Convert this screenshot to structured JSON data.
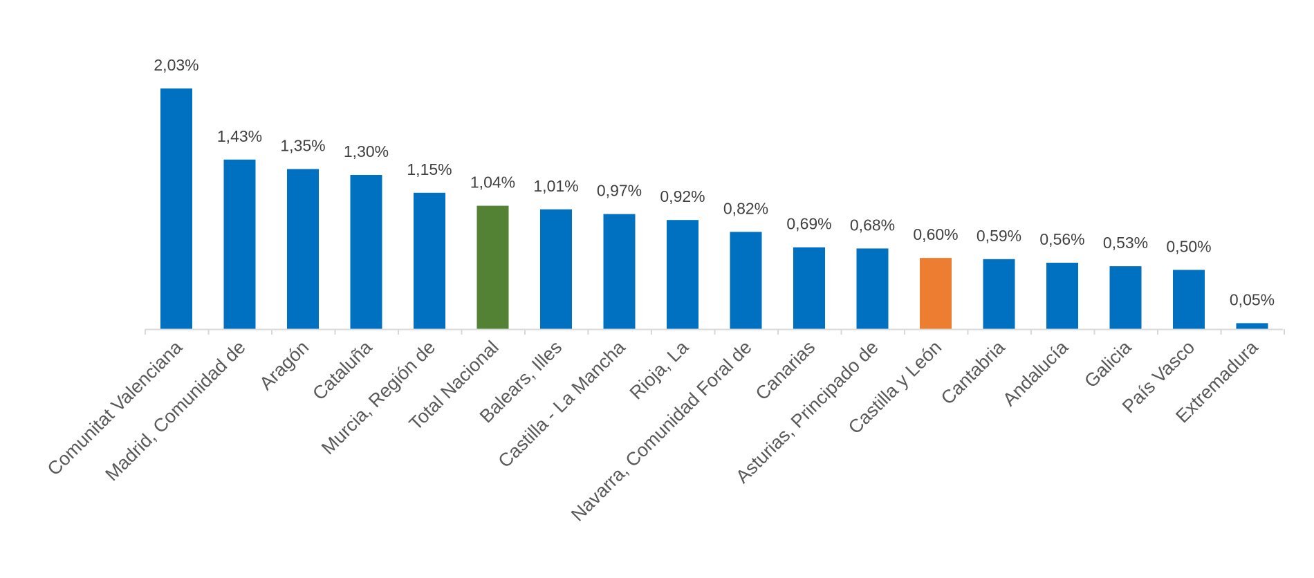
{
  "chart_data": {
    "type": "bar",
    "title": "",
    "xlabel": "",
    "ylabel": "",
    "ylim": [
      0,
      2.1
    ],
    "grid": false,
    "legend": "none",
    "categories": [
      "Comunitat Valenciana",
      "Madrid, Comunidad de",
      "Aragón",
      "Cataluña",
      "Murcia, Región de",
      "Total Nacional",
      "Balears, Illes",
      "Castilla - La Mancha",
      "Rioja, La",
      "Navarra, Comunidad Foral de",
      "Canarias",
      "Asturias, Principado de",
      "Castilla y León",
      "Cantabria",
      "Andalucía",
      "Galicia",
      "País Vasco",
      "Extremadura"
    ],
    "values": [
      2.03,
      1.43,
      1.35,
      1.3,
      1.15,
      1.04,
      1.01,
      0.97,
      0.92,
      0.82,
      0.69,
      0.68,
      0.6,
      0.59,
      0.56,
      0.53,
      0.5,
      0.05
    ],
    "value_labels": [
      "2,03%",
      "1,43%",
      "1,35%",
      "1,30%",
      "1,15%",
      "1,04%",
      "1,01%",
      "0,97%",
      "0,92%",
      "0,82%",
      "0,69%",
      "0,68%",
      "0,60%",
      "0,59%",
      "0,56%",
      "0,53%",
      "0,50%",
      "0,05%"
    ],
    "colors": {
      "default": "#0070C0",
      "Total Nacional": "#548235",
      "Castilla y León": "#ED7D31",
      "axis": "#D9D9D9"
    }
  }
}
